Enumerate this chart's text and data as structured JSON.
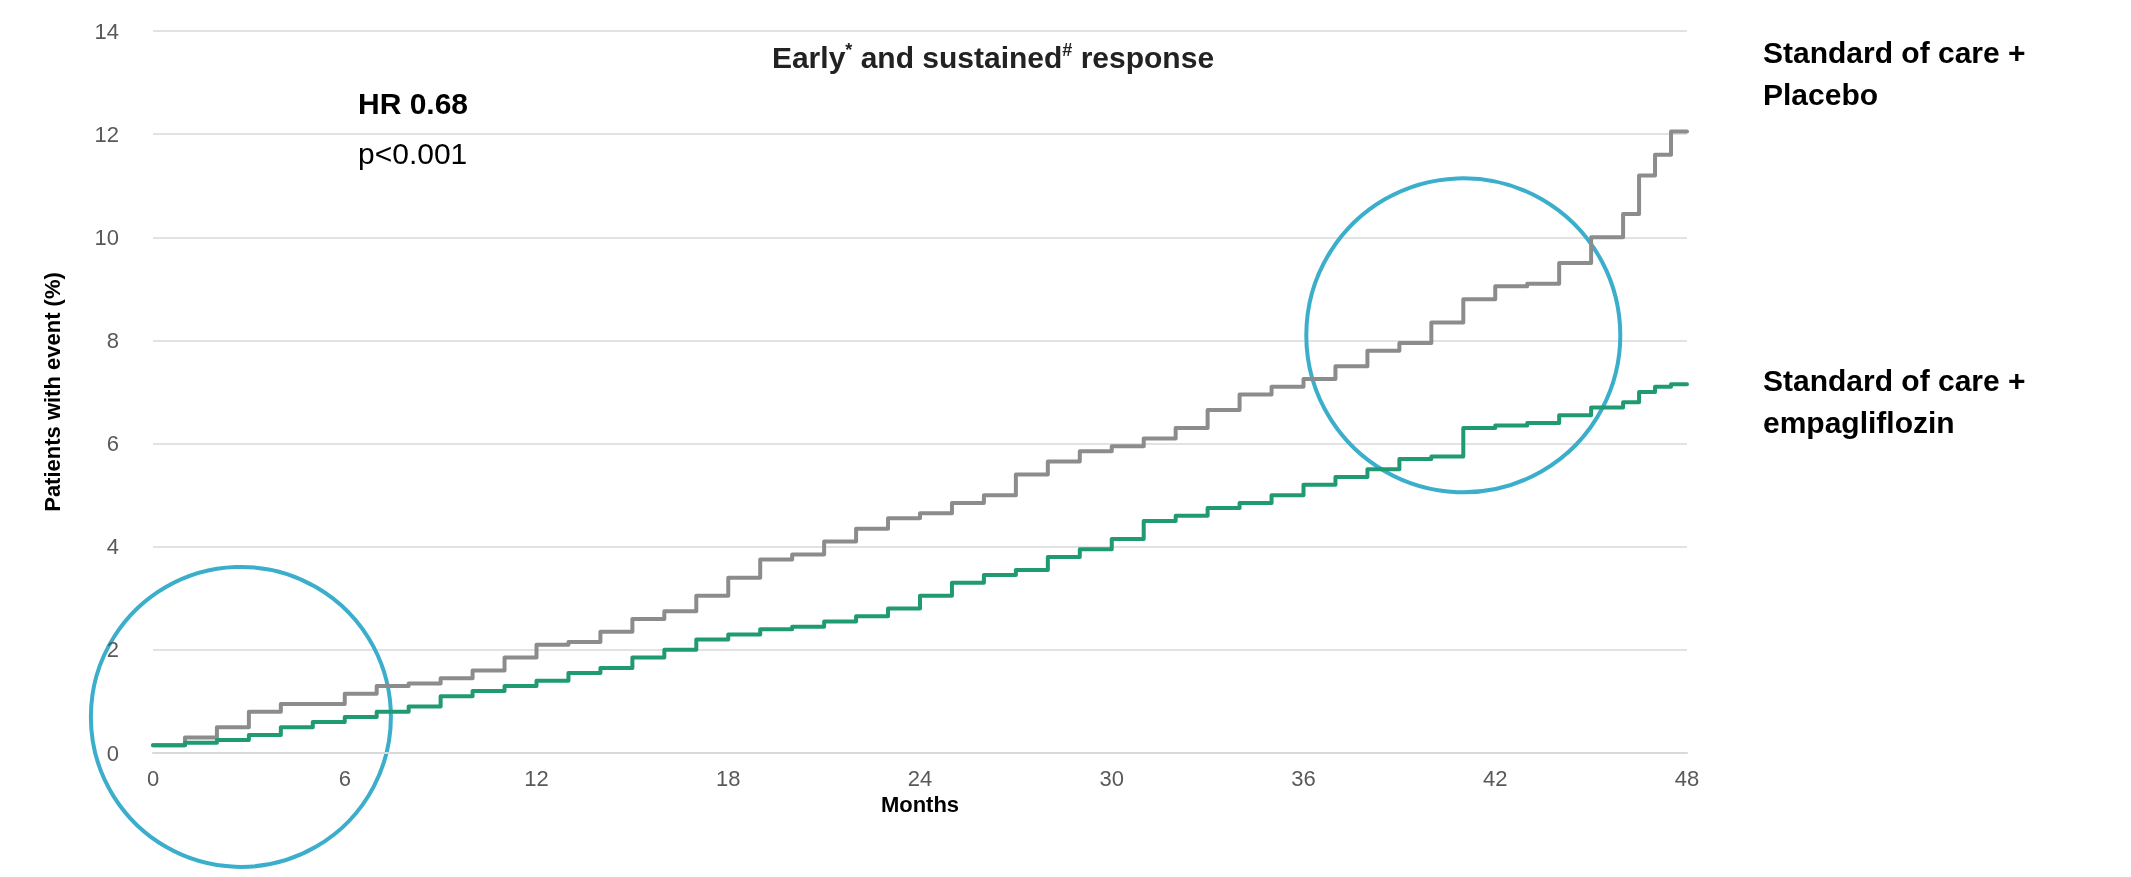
{
  "chart_data": {
    "type": "step",
    "title": "Early$^{*}$ and sustained$^{#}$ response",
    "xlabel": "Months",
    "ylabel": "Patients with event (%)",
    "annotations": [
      "HR 0.68",
      "p<0.001"
    ],
    "x": [
      0,
      1,
      2,
      3,
      4,
      5,
      6,
      7,
      8,
      9,
      10,
      11,
      12,
      13,
      14,
      15,
      16,
      17,
      18,
      19,
      20,
      21,
      22,
      23,
      24,
      25,
      26,
      27,
      28,
      29,
      30,
      31,
      32,
      33,
      34,
      35,
      36,
      37,
      38,
      39,
      40,
      41,
      42,
      43,
      44,
      45,
      46,
      46.5,
      47,
      47.5,
      48
    ],
    "series": [
      {
        "name": "Standard of care + Placebo",
        "color": "#8c8c8c",
        "values": [
          0.15,
          0.3,
          0.5,
          0.8,
          0.95,
          0.95,
          1.15,
          1.3,
          1.35,
          1.45,
          1.6,
          1.85,
          2.1,
          2.15,
          2.35,
          2.6,
          2.75,
          3.05,
          3.4,
          3.75,
          3.85,
          4.1,
          4.35,
          4.55,
          4.65,
          4.85,
          5.0,
          5.4,
          5.65,
          5.85,
          5.95,
          6.1,
          6.3,
          6.65,
          6.95,
          7.1,
          7.25,
          7.5,
          7.8,
          7.95,
          8.35,
          8.8,
          9.05,
          9.1,
          9.5,
          10.0,
          10.45,
          11.2,
          11.6,
          12.05,
          12.05
        ]
      },
      {
        "name": "Standard of care + empagliflozin",
        "color": "#1f9a72",
        "values": [
          0.15,
          0.2,
          0.25,
          0.35,
          0.5,
          0.6,
          0.7,
          0.8,
          0.9,
          1.1,
          1.2,
          1.3,
          1.4,
          1.55,
          1.65,
          1.85,
          2.0,
          2.2,
          2.3,
          2.4,
          2.45,
          2.55,
          2.65,
          2.8,
          3.05,
          3.3,
          3.45,
          3.55,
          3.8,
          3.95,
          4.15,
          4.5,
          4.6,
          4.75,
          4.85,
          5.0,
          5.2,
          5.35,
          5.5,
          5.7,
          5.75,
          6.3,
          6.35,
          6.4,
          6.55,
          6.7,
          6.8,
          7.0,
          7.1,
          7.15,
          7.15
        ]
      }
    ],
    "xlim": [
      0,
      48
    ],
    "xticks": [
      0,
      6,
      12,
      18,
      24,
      30,
      36,
      42,
      48
    ],
    "ylim": [
      0,
      14
    ],
    "yticks": [
      0,
      2,
      4,
      6,
      8,
      10,
      12,
      14
    ],
    "grid": "y",
    "legend": false,
    "marker": "none",
    "line_style": "solid"
  }
}
